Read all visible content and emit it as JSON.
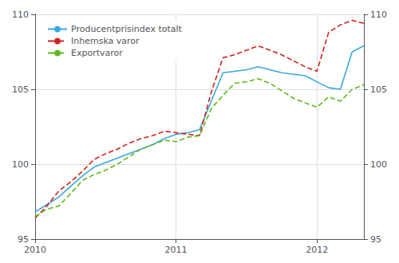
{
  "chart_data": {
    "type": "line",
    "categories": [
      "2010",
      null,
      null,
      null,
      null,
      null,
      null,
      null,
      null,
      null,
      null,
      null,
      "2011",
      null,
      null,
      null,
      null,
      null,
      null,
      null,
      null,
      null,
      null,
      null,
      "2012",
      null,
      null,
      null,
      null
    ],
    "series": [
      {
        "name": "Producentprisindex totalt",
        "color": "#3aa8d8",
        "line_style": "solid",
        "values": [
          96.8,
          97.3,
          97.8,
          98.5,
          99.2,
          99.8,
          100.1,
          100.4,
          100.7,
          101.0,
          101.3,
          101.7,
          102.0,
          102.1,
          102.3,
          104.2,
          106.1,
          106.2,
          106.3,
          106.5,
          106.3,
          106.1,
          106.0,
          105.9,
          105.5,
          105.1,
          105.0,
          107.5,
          107.9
        ]
      },
      {
        "name": "Inhemska varor",
        "color": "#d42020",
        "line_style": "dashed",
        "values": [
          96.4,
          97.2,
          98.2,
          98.8,
          99.5,
          100.3,
          100.7,
          101.0,
          101.4,
          101.7,
          101.9,
          102.2,
          102.1,
          102.0,
          101.9,
          104.8,
          107.1,
          107.3,
          107.6,
          107.9,
          107.6,
          107.3,
          106.9,
          106.5,
          106.2,
          108.8,
          109.3,
          109.6,
          109.4
        ]
      },
      {
        "name": "Exportvaror",
        "color": "#60b820",
        "line_style": "dashed",
        "values": [
          96.5,
          97.0,
          97.2,
          98.0,
          98.9,
          99.3,
          99.6,
          100.0,
          100.5,
          101.0,
          101.3,
          101.6,
          101.5,
          101.8,
          101.9,
          103.7,
          104.6,
          105.4,
          105.5,
          105.7,
          105.4,
          104.9,
          104.4,
          104.1,
          103.8,
          104.5,
          104.2,
          105.0,
          105.3
        ]
      }
    ],
    "ylim": [
      95,
      110
    ],
    "yticks": [
      95,
      100,
      105,
      110
    ],
    "y2lim": [
      95,
      110
    ],
    "y2ticks": [
      95,
      100,
      105,
      110
    ],
    "grid": true,
    "legend": "upper left"
  }
}
